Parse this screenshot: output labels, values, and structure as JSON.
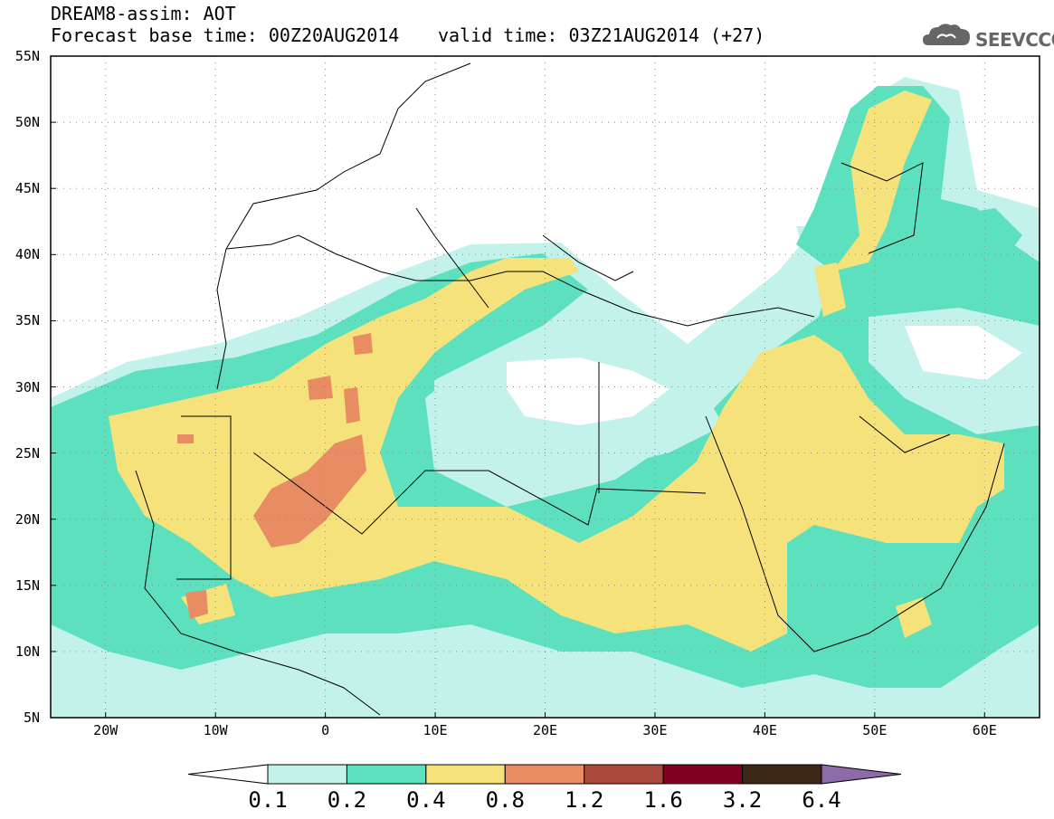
{
  "header": {
    "title_line1": "DREAM8-assim: AOT",
    "title_line2": "Forecast base time: 00Z20AUG2014",
    "valid_time": "valid time: 03Z21AUG2014 (+27)",
    "logo_text": "SEEVCCC"
  },
  "map": {
    "extent": {
      "lon": [
        -25,
        65
      ],
      "lat": [
        5,
        55
      ]
    },
    "lat_labels": [
      "55N",
      "50N",
      "45N",
      "40N",
      "35N",
      "30N",
      "25N",
      "20N",
      "15N",
      "10N",
      "5N"
    ],
    "lat_values": [
      55,
      50,
      45,
      40,
      35,
      30,
      25,
      20,
      15,
      10,
      5
    ],
    "lon_labels": [
      "20W",
      "10W",
      "0",
      "10E",
      "20E",
      "30E",
      "40E",
      "50E",
      "60E"
    ],
    "lon_values": [
      -20,
      -10,
      0,
      10,
      20,
      30,
      40,
      50,
      60
    ],
    "grid": "dotted"
  },
  "legend": {
    "levels": [
      "0.1",
      "0.2",
      "0.4",
      "0.8",
      "1.2",
      "1.6",
      "3.2",
      "6.4"
    ],
    "colors": [
      "#ffffff",
      "#c3f2ea",
      "#5ce0bd",
      "#f5e27a",
      "#e88c64",
      "#a8493c",
      "#800020",
      "#3d2818",
      "#8e6aa8"
    ]
  }
}
